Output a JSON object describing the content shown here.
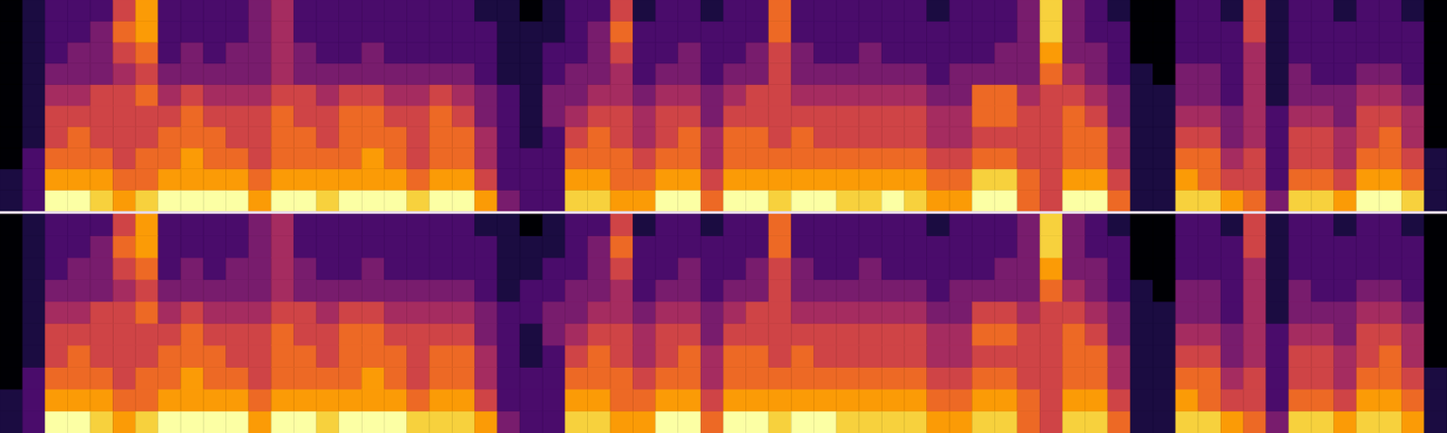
{
  "chart_data": [
    {
      "type": "heatmap",
      "tick_labels": false,
      "color_range": [
        0,
        9
      ],
      "cells": [
        [
          0,
          0,
          0,
          0,
          0,
          0,
          0,
          0,
          1,
          1
        ],
        [
          1,
          1,
          1,
          1,
          1,
          1,
          1,
          2,
          2,
          2
        ],
        [
          2,
          2,
          2,
          3,
          4,
          5,
          5,
          6,
          7,
          9
        ],
        [
          2,
          2,
          3,
          3,
          4,
          5,
          6,
          6,
          7,
          9
        ],
        [
          2,
          3,
          3,
          3,
          5,
          5,
          5,
          6,
          7,
          8
        ],
        [
          5,
          6,
          5,
          4,
          5,
          5,
          5,
          5,
          6,
          7
        ],
        [
          7,
          7,
          6,
          5,
          6,
          5,
          5,
          6,
          6,
          8
        ],
        [
          2,
          2,
          2,
          3,
          4,
          5,
          6,
          6,
          7,
          9
        ],
        [
          2,
          2,
          3,
          3,
          5,
          6,
          6,
          7,
          7,
          9
        ],
        [
          2,
          2,
          2,
          3,
          4,
          5,
          6,
          6,
          7,
          9
        ],
        [
          2,
          2,
          3,
          3,
          4,
          5,
          5,
          6,
          7,
          9
        ],
        [
          3,
          3,
          3,
          3,
          4,
          5,
          5,
          5,
          6,
          7
        ],
        [
          4,
          4,
          4,
          4,
          5,
          6,
          6,
          6,
          7,
          9
        ],
        [
          2,
          2,
          3,
          3,
          5,
          5,
          6,
          6,
          7,
          9
        ],
        [
          2,
          2,
          2,
          3,
          4,
          5,
          5,
          6,
          7,
          8
        ],
        [
          2,
          2,
          2,
          3,
          5,
          6,
          6,
          6,
          7,
          9
        ],
        [
          2,
          2,
          3,
          3,
          5,
          6,
          6,
          7,
          7,
          9
        ],
        [
          2,
          2,
          2,
          3,
          4,
          5,
          6,
          6,
          7,
          9
        ],
        [
          2,
          2,
          2,
          3,
          4,
          5,
          5,
          5,
          6,
          8
        ],
        [
          2,
          2,
          2,
          3,
          5,
          6,
          6,
          6,
          7,
          9
        ],
        [
          2,
          2,
          2,
          3,
          4,
          5,
          6,
          6,
          7,
          9
        ],
        [
          1,
          2,
          2,
          2,
          3,
          3,
          4,
          4,
          5,
          7
        ],
        [
          1,
          1,
          1,
          1,
          2,
          2,
          2,
          2,
          2,
          3
        ],
        [
          0,
          1,
          1,
          1,
          1,
          1,
          1,
          2,
          2,
          2
        ],
        [
          1,
          1,
          2,
          2,
          3,
          3,
          2,
          2,
          2,
          2
        ],
        [
          2,
          2,
          2,
          3,
          3,
          4,
          5,
          6,
          7,
          8
        ],
        [
          2,
          3,
          3,
          3,
          4,
          5,
          6,
          6,
          7,
          8
        ],
        [
          5,
          6,
          5,
          4,
          4,
          5,
          5,
          6,
          6,
          7
        ],
        [
          1,
          2,
          2,
          2,
          3,
          4,
          4,
          5,
          6,
          7
        ],
        [
          2,
          2,
          2,
          3,
          4,
          5,
          5,
          6,
          7,
          9
        ],
        [
          2,
          2,
          3,
          3,
          4,
          5,
          6,
          6,
          7,
          9
        ],
        [
          1,
          2,
          2,
          2,
          3,
          3,
          4,
          4,
          5,
          6
        ],
        [
          2,
          2,
          2,
          3,
          4,
          5,
          6,
          6,
          7,
          9
        ],
        [
          2,
          2,
          3,
          3,
          5,
          5,
          6,
          6,
          7,
          9
        ],
        [
          6,
          6,
          5,
          5,
          5,
          5,
          5,
          6,
          7,
          8
        ],
        [
          2,
          2,
          3,
          3,
          4,
          5,
          6,
          6,
          7,
          9
        ],
        [
          2,
          2,
          2,
          3,
          4,
          5,
          5,
          6,
          7,
          9
        ],
        [
          2,
          2,
          2,
          3,
          4,
          5,
          5,
          6,
          7,
          8
        ],
        [
          2,
          2,
          3,
          3,
          4,
          5,
          5,
          6,
          7,
          8
        ],
        [
          2,
          2,
          2,
          3,
          4,
          5,
          5,
          6,
          7,
          9
        ],
        [
          2,
          2,
          2,
          3,
          4,
          5,
          5,
          6,
          7,
          8
        ],
        [
          1,
          2,
          2,
          2,
          3,
          4,
          4,
          5,
          6,
          7
        ],
        [
          2,
          2,
          2,
          3,
          3,
          4,
          4,
          5,
          6,
          7
        ],
        [
          2,
          2,
          2,
          3,
          6,
          6,
          5,
          6,
          8,
          9
        ],
        [
          2,
          2,
          3,
          3,
          6,
          6,
          5,
          6,
          8,
          9
        ],
        [
          3,
          3,
          3,
          3,
          4,
          5,
          5,
          5,
          6,
          6
        ],
        [
          8,
          8,
          7,
          6,
          5,
          5,
          5,
          5,
          5,
          5
        ],
        [
          3,
          3,
          3,
          4,
          5,
          6,
          6,
          6,
          7,
          9
        ],
        [
          2,
          2,
          3,
          3,
          4,
          5,
          6,
          6,
          7,
          9
        ],
        [
          1,
          2,
          2,
          2,
          3,
          3,
          4,
          4,
          5,
          6
        ],
        [
          0,
          0,
          0,
          1,
          1,
          1,
          1,
          1,
          1,
          1
        ],
        [
          0,
          0,
          0,
          0,
          1,
          1,
          1,
          1,
          1,
          1
        ],
        [
          2,
          2,
          2,
          3,
          3,
          4,
          5,
          6,
          7,
          8
        ],
        [
          2,
          2,
          2,
          3,
          3,
          4,
          5,
          6,
          6,
          8
        ],
        [
          1,
          2,
          2,
          2,
          2,
          3,
          3,
          4,
          5,
          7
        ],
        [
          5,
          5,
          4,
          4,
          4,
          4,
          4,
          5,
          5,
          6
        ],
        [
          1,
          1,
          1,
          1,
          1,
          2,
          2,
          2,
          2,
          3
        ],
        [
          2,
          2,
          2,
          3,
          3,
          4,
          5,
          5,
          6,
          8
        ],
        [
          2,
          2,
          2,
          2,
          3,
          4,
          5,
          5,
          6,
          8
        ],
        [
          1,
          2,
          2,
          2,
          3,
          3,
          4,
          4,
          5,
          7
        ],
        [
          2,
          2,
          2,
          3,
          4,
          5,
          5,
          6,
          7,
          9
        ],
        [
          2,
          2,
          2,
          3,
          4,
          5,
          6,
          6,
          7,
          9
        ],
        [
          1,
          2,
          2,
          2,
          3,
          4,
          4,
          5,
          6,
          8
        ],
        [
          0,
          0,
          0,
          0,
          0,
          0,
          0,
          1,
          1,
          1
        ]
      ]
    },
    {
      "type": "heatmap",
      "tick_labels": false,
      "color_range": [
        0,
        9
      ],
      "cells": [
        [
          0,
          0,
          0,
          0,
          0,
          0,
          0,
          0,
          1,
          1
        ],
        [
          1,
          1,
          1,
          1,
          1,
          1,
          1,
          2,
          2,
          2
        ],
        [
          2,
          2,
          2,
          3,
          4,
          5,
          5,
          6,
          7,
          9
        ],
        [
          2,
          2,
          3,
          3,
          4,
          5,
          6,
          6,
          7,
          9
        ],
        [
          2,
          3,
          3,
          3,
          5,
          5,
          5,
          6,
          7,
          8
        ],
        [
          5,
          6,
          5,
          4,
          5,
          5,
          5,
          5,
          6,
          7
        ],
        [
          7,
          7,
          6,
          5,
          6,
          5,
          5,
          6,
          6,
          8
        ],
        [
          2,
          2,
          2,
          3,
          4,
          5,
          6,
          6,
          7,
          9
        ],
        [
          2,
          2,
          3,
          3,
          5,
          6,
          6,
          7,
          7,
          9
        ],
        [
          2,
          2,
          2,
          3,
          4,
          5,
          6,
          6,
          7,
          9
        ],
        [
          2,
          2,
          3,
          3,
          4,
          5,
          5,
          6,
          7,
          9
        ],
        [
          3,
          3,
          3,
          3,
          4,
          5,
          5,
          5,
          6,
          7
        ],
        [
          4,
          4,
          4,
          4,
          5,
          6,
          6,
          6,
          7,
          9
        ],
        [
          2,
          2,
          3,
          3,
          5,
          5,
          6,
          6,
          7,
          9
        ],
        [
          2,
          2,
          2,
          3,
          4,
          5,
          5,
          6,
          7,
          8
        ],
        [
          2,
          2,
          2,
          3,
          5,
          6,
          6,
          6,
          7,
          9
        ],
        [
          2,
          2,
          3,
          3,
          5,
          6,
          6,
          7,
          7,
          9
        ],
        [
          2,
          2,
          2,
          3,
          4,
          5,
          6,
          6,
          7,
          9
        ],
        [
          2,
          2,
          2,
          3,
          4,
          5,
          5,
          5,
          6,
          8
        ],
        [
          2,
          2,
          2,
          3,
          4,
          5,
          6,
          6,
          7,
          8
        ],
        [
          2,
          2,
          2,
          3,
          4,
          5,
          6,
          6,
          7,
          8
        ],
        [
          1,
          2,
          2,
          2,
          3,
          3,
          4,
          4,
          5,
          7
        ],
        [
          1,
          1,
          1,
          1,
          2,
          2,
          2,
          2,
          2,
          3
        ],
        [
          0,
          1,
          1,
          2,
          2,
          1,
          1,
          2,
          2,
          2
        ],
        [
          1,
          1,
          2,
          2,
          3,
          3,
          2,
          2,
          2,
          2
        ],
        [
          2,
          2,
          2,
          3,
          3,
          4,
          5,
          6,
          7,
          8
        ],
        [
          2,
          3,
          3,
          3,
          4,
          5,
          6,
          6,
          7,
          8
        ],
        [
          5,
          6,
          5,
          4,
          4,
          5,
          5,
          6,
          6,
          7
        ],
        [
          1,
          2,
          2,
          2,
          3,
          4,
          4,
          5,
          6,
          7
        ],
        [
          2,
          2,
          2,
          3,
          4,
          5,
          5,
          6,
          7,
          9
        ],
        [
          2,
          2,
          3,
          3,
          4,
          5,
          6,
          6,
          7,
          9
        ],
        [
          1,
          2,
          2,
          2,
          3,
          3,
          4,
          4,
          5,
          6
        ],
        [
          2,
          2,
          2,
          3,
          4,
          5,
          6,
          6,
          7,
          9
        ],
        [
          2,
          2,
          3,
          3,
          5,
          5,
          6,
          6,
          7,
          9
        ],
        [
          6,
          6,
          5,
          5,
          5,
          5,
          5,
          6,
          7,
          8
        ],
        [
          2,
          2,
          3,
          3,
          4,
          5,
          6,
          6,
          7,
          9
        ],
        [
          2,
          2,
          2,
          3,
          4,
          5,
          5,
          6,
          7,
          9
        ],
        [
          2,
          2,
          2,
          3,
          4,
          5,
          5,
          6,
          7,
          8
        ],
        [
          2,
          2,
          3,
          3,
          4,
          5,
          5,
          6,
          7,
          8
        ],
        [
          2,
          2,
          2,
          3,
          4,
          5,
          5,
          6,
          7,
          8
        ],
        [
          2,
          2,
          2,
          3,
          4,
          5,
          5,
          6,
          7,
          8
        ],
        [
          1,
          2,
          2,
          2,
          3,
          4,
          4,
          5,
          6,
          7
        ],
        [
          2,
          2,
          2,
          3,
          3,
          4,
          4,
          5,
          6,
          7
        ],
        [
          2,
          2,
          2,
          3,
          5,
          6,
          5,
          6,
          7,
          8
        ],
        [
          2,
          2,
          3,
          3,
          5,
          6,
          5,
          6,
          7,
          8
        ],
        [
          3,
          3,
          3,
          3,
          4,
          5,
          5,
          5,
          6,
          6
        ],
        [
          8,
          8,
          7,
          6,
          5,
          5,
          5,
          5,
          5,
          5
        ],
        [
          3,
          3,
          3,
          4,
          5,
          6,
          6,
          6,
          7,
          8
        ],
        [
          2,
          2,
          3,
          3,
          4,
          5,
          6,
          6,
          7,
          8
        ],
        [
          1,
          2,
          2,
          2,
          3,
          3,
          4,
          4,
          5,
          6
        ],
        [
          0,
          0,
          0,
          1,
          1,
          1,
          1,
          1,
          1,
          1
        ],
        [
          0,
          0,
          0,
          0,
          1,
          1,
          1,
          1,
          1,
          1
        ],
        [
          2,
          2,
          2,
          3,
          3,
          4,
          5,
          6,
          7,
          8
        ],
        [
          2,
          2,
          2,
          3,
          3,
          4,
          5,
          6,
          6,
          8
        ],
        [
          1,
          2,
          2,
          2,
          2,
          3,
          3,
          4,
          5,
          7
        ],
        [
          5,
          5,
          4,
          4,
          4,
          4,
          4,
          5,
          5,
          6
        ],
        [
          1,
          1,
          1,
          1,
          1,
          2,
          2,
          2,
          2,
          3
        ],
        [
          2,
          2,
          2,
          3,
          3,
          4,
          5,
          5,
          6,
          8
        ],
        [
          2,
          2,
          2,
          2,
          3,
          4,
          5,
          5,
          6,
          8
        ],
        [
          1,
          2,
          2,
          2,
          3,
          3,
          4,
          4,
          5,
          7
        ],
        [
          2,
          2,
          2,
          3,
          4,
          5,
          5,
          6,
          7,
          8
        ],
        [
          2,
          2,
          2,
          3,
          4,
          5,
          6,
          6,
          7,
          8
        ],
        [
          1,
          2,
          2,
          2,
          3,
          4,
          4,
          5,
          6,
          7
        ],
        [
          0,
          0,
          0,
          0,
          0,
          0,
          0,
          1,
          1,
          1
        ]
      ]
    }
  ]
}
